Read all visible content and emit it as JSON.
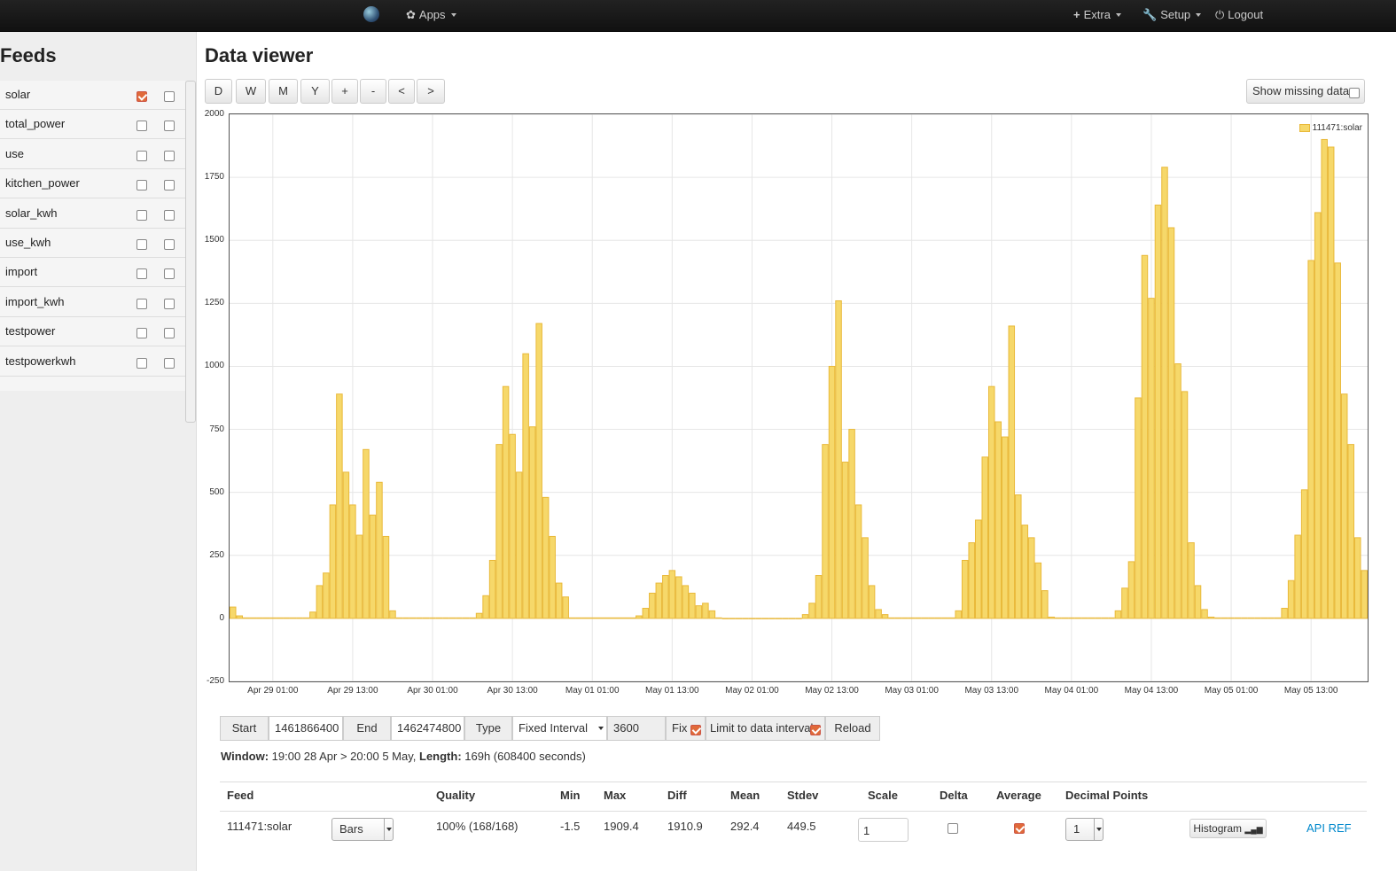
{
  "topbar": {
    "apps": "Apps",
    "extra": "Extra",
    "setup": "Setup",
    "logout": "Logout"
  },
  "sidebar": {
    "title": "Feeds",
    "feeds": [
      {
        "name": "solar",
        "left": true,
        "right": false
      },
      {
        "name": "total_power",
        "left": false,
        "right": false
      },
      {
        "name": "use",
        "left": false,
        "right": false
      },
      {
        "name": "kitchen_power",
        "left": false,
        "right": false
      },
      {
        "name": "solar_kwh",
        "left": false,
        "right": false
      },
      {
        "name": "use_kwh",
        "left": false,
        "right": false
      },
      {
        "name": "import",
        "left": false,
        "right": false
      },
      {
        "name": "import_kwh",
        "left": false,
        "right": false
      },
      {
        "name": "testpower",
        "left": false,
        "right": false
      },
      {
        "name": "testpowerkwh",
        "left": false,
        "right": false
      }
    ]
  },
  "main": {
    "title": "Data viewer",
    "range_buttons": [
      "D",
      "W",
      "M",
      "Y",
      "+",
      "-",
      "<",
      ">"
    ],
    "show_missing": "Show missing data:"
  },
  "controls": {
    "start_label": "Start",
    "start": "1461866400",
    "end_label": "End",
    "end": "1462474800",
    "type_label": "Type",
    "type": "Fixed Interval",
    "interval": "3600",
    "fix": "Fix",
    "limit": "Limit to data interval",
    "reload": "Reload"
  },
  "window": {
    "label": "Window:",
    "range": " 19:00 28 Apr > 20:00 5 May, ",
    "length_label": "Length:",
    "length": " 169h (608400 seconds)"
  },
  "stats": {
    "headers": [
      "Feed",
      "Quality",
      "Min",
      "Max",
      "Diff",
      "Mean",
      "Stdev",
      "Scale",
      "Delta",
      "Average",
      "Decimal Points"
    ],
    "feed": "111471:solar",
    "mode": "Bars",
    "quality": "100% (168/168)",
    "min": "-1.5",
    "max": "1909.4",
    "diff": "1910.9",
    "mean": "292.4",
    "stdev": "449.5",
    "scale": "1",
    "decimals": "1",
    "histogram": "Histogram",
    "api": "API REF"
  },
  "colors": {
    "bar_fill": "#f6d86a",
    "bar_stroke": "#e9b93a",
    "accent": "#e06a3a",
    "link": "#0088cc"
  },
  "chart_data": {
    "type": "bar",
    "legend": "111471:solar",
    "legend_position": "top-right",
    "grid": true,
    "ylim": [
      -250,
      2000
    ],
    "yticks": [
      -250,
      0,
      250,
      500,
      750,
      1000,
      1250,
      1500,
      1750,
      2000
    ],
    "xticks": [
      "Apr 29 01:00",
      "Apr 29 13:00",
      "Apr 30 01:00",
      "Apr 30 13:00",
      "May 01 01:00",
      "May 01 13:00",
      "May 02 01:00",
      "May 02 13:00",
      "May 03 01:00",
      "May 03 13:00",
      "May 04 01:00",
      "May 04 13:00",
      "May 05 01:00",
      "May 05 13:00"
    ],
    "x_start": "Apr 28 19:00",
    "x_step_hours": 1,
    "values": [
      45,
      10,
      2,
      2,
      2,
      2,
      2,
      2,
      2,
      2,
      2,
      2,
      25,
      130,
      180,
      450,
      890,
      580,
      450,
      330,
      670,
      410,
      540,
      325,
      30,
      2,
      2,
      2,
      2,
      2,
      2,
      2,
      2,
      2,
      2,
      2,
      2,
      20,
      90,
      230,
      690,
      920,
      730,
      580,
      1050,
      760,
      1170,
      480,
      325,
      140,
      85,
      2,
      2,
      2,
      2,
      2,
      2,
      2,
      2,
      2,
      2,
      10,
      40,
      100,
      140,
      170,
      190,
      165,
      130,
      100,
      50,
      60,
      30,
      2,
      -1.5,
      -1.5,
      -1.5,
      -1.5,
      -1.5,
      -1.5,
      -1.5,
      -1.5,
      -1.5,
      -1.5,
      -1.5,
      -1.5,
      15,
      60,
      170,
      690,
      1000,
      1260,
      620,
      750,
      450,
      320,
      130,
      35,
      15,
      2,
      2,
      2,
      2,
      2,
      2,
      2,
      2,
      2,
      2,
      30,
      230,
      300,
      390,
      640,
      920,
      780,
      720,
      1160,
      490,
      370,
      320,
      220,
      110,
      5,
      2,
      2,
      2,
      2,
      2,
      2,
      2,
      2,
      2,
      30,
      120,
      225,
      875,
      1440,
      1270,
      1640,
      1790,
      1550,
      1010,
      900,
      300,
      130,
      35,
      5,
      2,
      2,
      2,
      2,
      2,
      2,
      2,
      2,
      2,
      2,
      40,
      150,
      330,
      510,
      1420,
      1610,
      1900,
      1870,
      1410,
      890,
      690,
      320,
      190
    ]
  }
}
